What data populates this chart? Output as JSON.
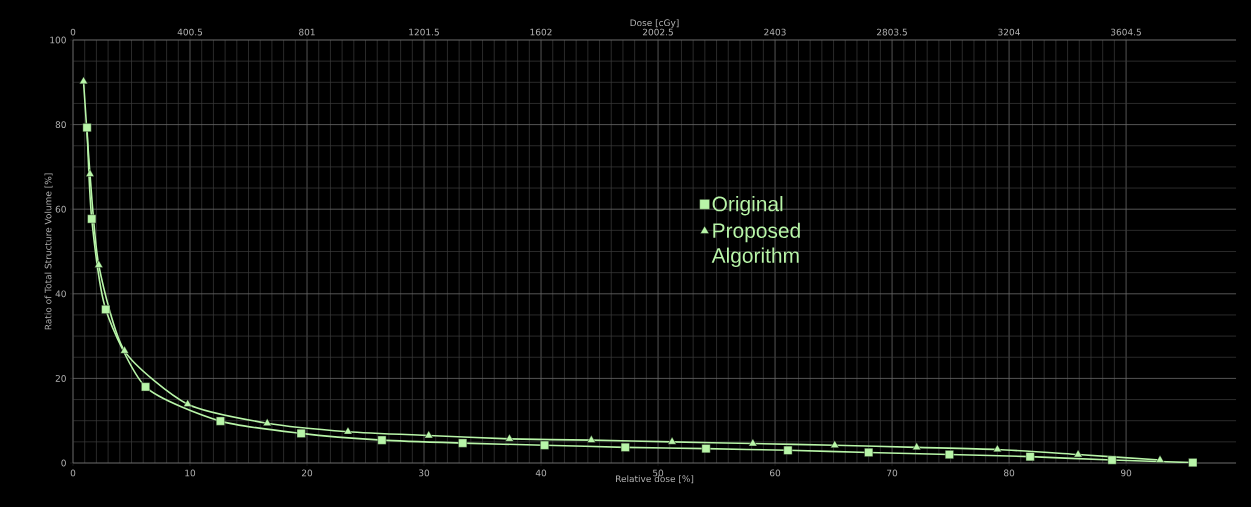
{
  "chart_data": {
    "type": "line",
    "xlabel": "Relative dose [%]",
    "x2label": "Dose [cGy]",
    "ylabel": "Ratio of Total Structure Volume [%]",
    "xlim": [
      0,
      99.4
    ],
    "xticks": [
      0,
      10,
      20,
      30,
      40,
      50,
      60,
      70,
      80,
      90
    ],
    "x2lim": [
      0,
      3981
    ],
    "x2ticks": [
      0,
      400.5,
      801,
      1201.5,
      1602,
      2002.5,
      2403,
      2803.5,
      3204,
      3604.5
    ],
    "ylim": [
      0,
      100
    ],
    "yticks": [
      0,
      20,
      40,
      60,
      80,
      100
    ],
    "grid": true,
    "legend": "center",
    "series": [
      {
        "name": "Original",
        "color": "#b8f5a8",
        "marker": "square",
        "x": [
          1.2,
          1.6,
          2.8,
          6.2,
          12.6,
          19.5,
          26.4,
          33.3,
          40.3,
          47.2,
          54.1,
          61.1,
          68.0,
          74.9,
          81.8,
          88.8,
          95.7
        ],
        "values": [
          79.3,
          57.7,
          36.3,
          18.0,
          9.9,
          7.0,
          5.4,
          4.7,
          4.2,
          3.7,
          3.4,
          3.0,
          2.5,
          2.0,
          1.5,
          0.7,
          0.1
        ]
      },
      {
        "name": "Proposed Algorithm",
        "color": "#b8f5a8",
        "marker": "triangle",
        "x": [
          0.9,
          1.45,
          2.2,
          4.4,
          9.8,
          16.6,
          23.5,
          30.4,
          37.3,
          44.3,
          51.2,
          58.1,
          65.1,
          72.1,
          79.0,
          85.9,
          92.9
        ],
        "values": [
          90.2,
          68.3,
          46.8,
          26.5,
          13.9,
          9.4,
          7.4,
          6.5,
          5.7,
          5.4,
          5.0,
          4.6,
          4.2,
          3.7,
          3.2,
          2.0,
          0.7
        ]
      }
    ]
  }
}
